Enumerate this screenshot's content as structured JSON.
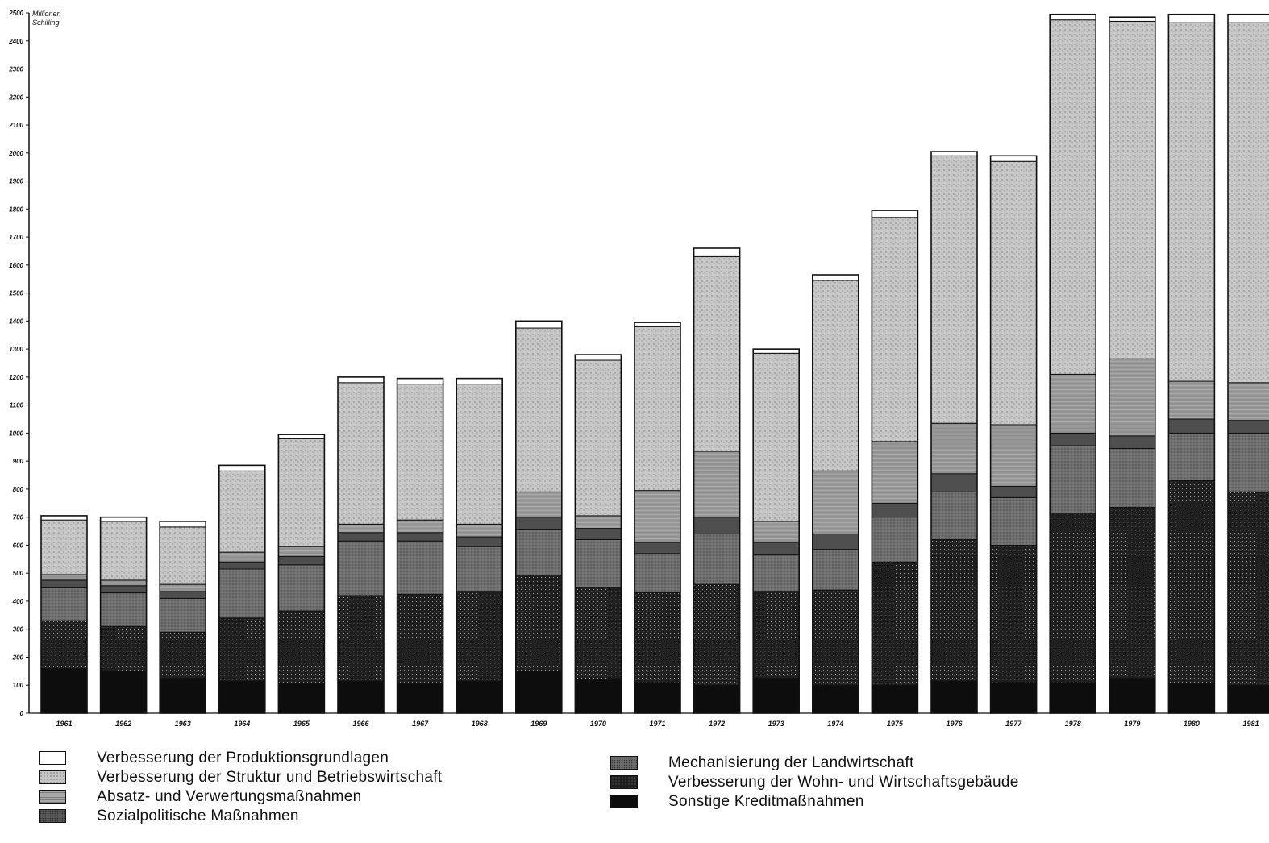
{
  "chart_data": {
    "type": "bar",
    "stacked": true,
    "unit_label_line1": "Millionen",
    "unit_label_line2": "Schilling",
    "ylim": [
      0,
      2500
    ],
    "y_ticks": [
      0,
      100,
      200,
      300,
      400,
      500,
      600,
      700,
      800,
      900,
      1000,
      1100,
      1200,
      1300,
      1400,
      1500,
      1600,
      1700,
      1800,
      1900,
      2000,
      2100,
      2200,
      2300,
      2400,
      2500
    ],
    "categories": [
      "1961",
      "1962",
      "1963",
      "1964",
      "1965",
      "1966",
      "1967",
      "1968",
      "1969",
      "1970",
      "1971",
      "1972",
      "1973",
      "1974",
      "1975",
      "1976",
      "1977",
      "1978",
      "1979",
      "1980",
      "1981"
    ],
    "series": [
      {
        "name": "Sonstige Kreditmaßnahmen",
        "color": "#0d0d0d",
        "values": [
          160,
          150,
          125,
          115,
          105,
          115,
          105,
          115,
          150,
          120,
          110,
          100,
          125,
          100,
          100,
          115,
          110,
          110,
          125,
          105,
          100
        ]
      },
      {
        "name": "Verbesserung der Wohn- und Wirtschaftsgebäude",
        "color": "#1e1e1e",
        "values": [
          170,
          160,
          165,
          225,
          260,
          305,
          320,
          320,
          340,
          330,
          320,
          360,
          310,
          340,
          440,
          505,
          490,
          605,
          610,
          725,
          690
        ]
      },
      {
        "name": "Mechanisierung der Landwirtschaft",
        "color": "#6e6e6e",
        "values": [
          120,
          120,
          120,
          175,
          165,
          195,
          190,
          160,
          165,
          170,
          140,
          180,
          130,
          145,
          160,
          170,
          170,
          240,
          210,
          170,
          210
        ]
      },
      {
        "name": "Sozialpolitische Maßnahmen",
        "color": "#4e4e4e",
        "values": [
          25,
          25,
          25,
          25,
          30,
          30,
          30,
          35,
          45,
          40,
          40,
          60,
          45,
          55,
          50,
          65,
          40,
          45,
          45,
          50,
          45
        ]
      },
      {
        "name": "Absatz- und Verwertungsmaßnahmen",
        "color": "#9a9a9a",
        "values": [
          20,
          20,
          25,
          35,
          35,
          30,
          45,
          45,
          90,
          45,
          185,
          235,
          75,
          225,
          220,
          180,
          220,
          210,
          275,
          135,
          135
        ]
      },
      {
        "name": "Verbesserung der Struktur und Betriebswirtschaft",
        "color": "#c6c6c6",
        "values": [
          195,
          210,
          205,
          290,
          385,
          505,
          485,
          500,
          585,
          555,
          585,
          695,
          600,
          680,
          800,
          955,
          940,
          1265,
          1205,
          1280,
          1285
        ]
      },
      {
        "name": "Verbesserung der Produktionsgrundlagen",
        "color": "#ffffff",
        "values": [
          15,
          15,
          20,
          20,
          15,
          20,
          20,
          20,
          25,
          20,
          15,
          30,
          15,
          20,
          25,
          15,
          20,
          20,
          15,
          30,
          30
        ]
      }
    ]
  },
  "legend": {
    "left": [
      {
        "label": "Verbesserung der Produktionsgrundlagen",
        "color": "#ffffff"
      },
      {
        "label": "Verbesserung der Struktur und Betriebswirtschaft",
        "color": "#c6c6c6"
      },
      {
        "label": "Absatz- und Verwertungsmaßnahmen",
        "color": "#9a9a9a"
      },
      {
        "label": "Sozialpolitische Maßnahmen",
        "color": "#4e4e4e"
      }
    ],
    "right": [
      {
        "label": "Mechanisierung der Landwirtschaft",
        "color": "#6e6e6e"
      },
      {
        "label": "Verbesserung der Wohn- und Wirtschaftsgebäude",
        "color": "#1e1e1e"
      },
      {
        "label": "Sonstige Kreditmaßnahmen",
        "color": "#0d0d0d"
      }
    ]
  }
}
